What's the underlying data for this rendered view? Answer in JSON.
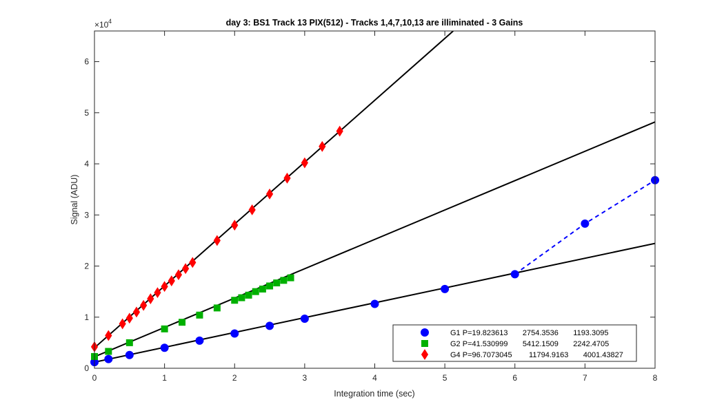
{
  "chart_data": {
    "type": "scatter",
    "title": "day 3: BS1  Track 13 PIX(512) - Tracks 1,4,7,10,13 are illiminated - 3 Gains",
    "xlabel": "Integration time (sec)",
    "ylabel": "Signal (ADU)",
    "y_exponent_label": "×10",
    "y_exponent_power": "4",
    "xlim": [
      0,
      8
    ],
    "ylim": [
      0,
      66000
    ],
    "x_ticks": [
      0,
      1,
      2,
      3,
      4,
      5,
      6,
      7,
      8
    ],
    "y_ticks": [
      0,
      10000,
      20000,
      30000,
      40000,
      50000,
      60000
    ],
    "x_tick_labels": [
      "0",
      "1",
      "2",
      "3",
      "4",
      "5",
      "6",
      "7",
      "8"
    ],
    "y_tick_labels": [
      "0",
      "1",
      "2",
      "3",
      "4",
      "5",
      "6"
    ],
    "grid": false,
    "legend_position": "bottom-right",
    "series": [
      {
        "name": "G1 P=19.823613       2754.3536       1193.3095",
        "legend_label": "G1 P=19.823613       2754.3536       1193.3095",
        "color": "#0000ff",
        "marker": "circle",
        "x": [
          0,
          0.2,
          0.5,
          1,
          1.5,
          2,
          2.5,
          3,
          4,
          5,
          6,
          7,
          8
        ],
        "y": [
          1200,
          1800,
          2600,
          4000,
          5400,
          6800,
          8300,
          9700,
          12600,
          15500,
          18400,
          28300,
          36800
        ],
        "fit_line": {
          "color": "#000000",
          "style": "solid",
          "x": [
            0,
            8
          ],
          "y": [
            1193,
            24430
          ]
        },
        "extension_line": {
          "color": "#0000ff",
          "style": "dashed",
          "x": [
            6,
            7,
            8
          ],
          "y": [
            18400,
            28300,
            36800
          ]
        }
      },
      {
        "name": "G2 P=41.530999       5412.1509       2242.4705",
        "legend_label": "G2 P=41.530999       5412.1509       2242.4705",
        "color": "#00b000",
        "marker": "square",
        "x": [
          0,
          0.2,
          0.5,
          1,
          1.25,
          1.5,
          1.75,
          2,
          2.1,
          2.2,
          2.3,
          2.4,
          2.5,
          2.6,
          2.7,
          2.8
        ],
        "y": [
          2300,
          3300,
          5000,
          7700,
          9000,
          10400,
          11800,
          13300,
          13800,
          14300,
          15000,
          15500,
          16100,
          16700,
          17200,
          17700
        ],
        "fit_line": {
          "color": "#000000",
          "style": "solid",
          "x": [
            0,
            8
          ],
          "y": [
            2242,
            48200
          ]
        }
      },
      {
        "name": "G4 P=96.7073045       11794.9163       4001.43827",
        "legend_label": "G4 P=96.7073045        11794.9163       4001.43827",
        "color": "#ff0000",
        "marker": "diamond",
        "x": [
          0,
          0.2,
          0.4,
          0.5,
          0.6,
          0.7,
          0.8,
          0.9,
          1.0,
          1.1,
          1.2,
          1.3,
          1.4,
          1.75,
          2.0,
          2.25,
          2.5,
          2.75,
          3.0,
          3.25,
          3.5
        ],
        "y": [
          4200,
          6400,
          8700,
          9800,
          11000,
          12300,
          13600,
          14800,
          16000,
          17100,
          18300,
          19500,
          20700,
          25000,
          28000,
          31000,
          34100,
          37200,
          40200,
          43400,
          46400
        ],
        "fit_line": {
          "color": "#000000",
          "style": "solid",
          "x": [
            0,
            5.12
          ],
          "y": [
            4001,
            66000
          ]
        }
      }
    ]
  }
}
